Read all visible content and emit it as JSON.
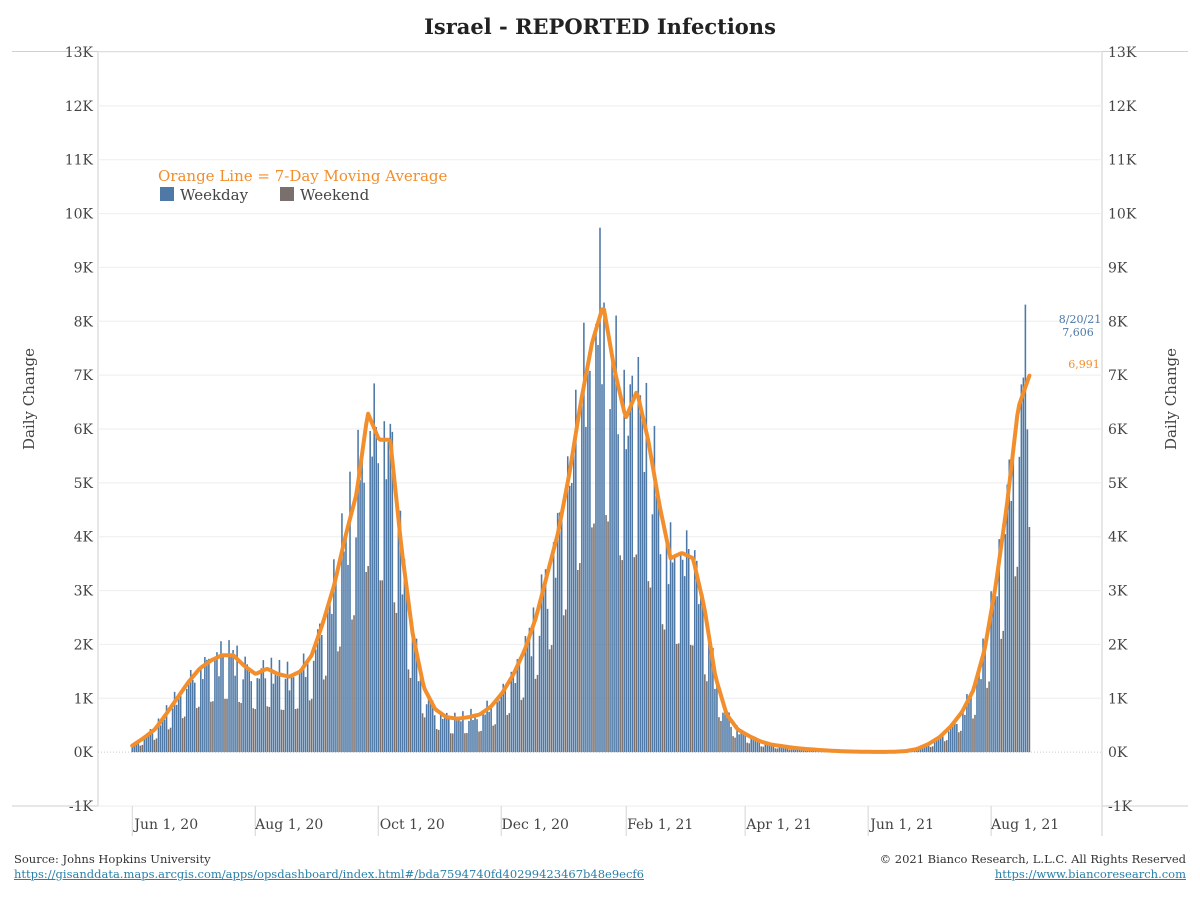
{
  "title": "Israel - REPORTED Infections",
  "source": "Source: Johns Hopkins University",
  "source_url": "https://gisanddata.maps.arcgis.com/apps/opsdashboard/index.html#/bda7594740fd40299423467b48e9ecf6",
  "copyright": "© 2021 Bianco Research, L.L.C. All Rights Reserved",
  "site_url": "https://www.biancoresearch.com",
  "colors": {
    "weekday": "#4e79a7",
    "weekend": "#79706e",
    "ma": "#f28e2b",
    "callout_bar": "#4e79a7",
    "callout_ma": "#f28e2b"
  },
  "chart_data": {
    "type": "bar",
    "title": "Israel - REPORTED Infections",
    "ylabel": "Daily Change",
    "ylabel_right": "Daily Change",
    "ylim": [
      -1000,
      13000
    ],
    "y_ticks": [
      -1000,
      0,
      1000,
      2000,
      3000,
      4000,
      5000,
      6000,
      7000,
      8000,
      9000,
      10000,
      11000,
      12000,
      13000
    ],
    "y_tick_labels": [
      "-1K",
      "0K",
      "1K",
      "2K",
      "3K",
      "4K",
      "5K",
      "6K",
      "7K",
      "8K",
      "9K",
      "10K",
      "11K",
      "12K",
      "13K"
    ],
    "xlim": [
      "2020-05-15",
      "2021-09-25"
    ],
    "x_ticks": [
      "2020-06-01",
      "2020-08-01",
      "2020-10-01",
      "2020-12-01",
      "2021-02-01",
      "2021-04-01",
      "2021-06-01",
      "2021-08-01"
    ],
    "x_tick_labels": [
      "Jun 1, 20",
      "Aug 1, 20",
      "Oct 1, 20",
      "Dec 1, 20",
      "Feb 1, 21",
      "Apr 1, 21",
      "Jun 1, 21",
      "Aug 1, 21"
    ],
    "grid": true,
    "legend": {
      "placement": "top-left",
      "note": "Orange Line = 7-Day Moving Average",
      "entries": [
        "Weekday",
        "Weekend"
      ]
    },
    "series": [
      {
        "name": "Daily Change (bars)",
        "type": "bar",
        "start_date": "2020-06-01",
        "end_date": "2021-08-20",
        "approximate_weekly_levels": [
          120,
          260,
          420,
          700,
          1000,
          1300,
          1550,
          1700,
          1800,
          1800,
          1600,
          1450,
          1550,
          1450,
          1400,
          1500,
          1800,
          2400,
          3100,
          4000,
          4800,
          6300,
          5800,
          5800,
          3800,
          2200,
          1200,
          800,
          650,
          620,
          650,
          700,
          850,
          1100,
          1450,
          1900,
          2500,
          3300,
          4100,
          5200,
          6500,
          7600,
          8300,
          7100,
          6200,
          6700,
          5800,
          4600,
          3600,
          3700,
          3600,
          2700,
          1400,
          700,
          420,
          300,
          200,
          140,
          110,
          80,
          60,
          45,
          30,
          20,
          12,
          8,
          6,
          5,
          8,
          20,
          60,
          150,
          280,
          480,
          750,
          1150,
          1900,
          3100,
          4600,
          6400,
          7600
        ]
      },
      {
        "name": "7-Day Moving Average",
        "type": "line",
        "start_date": "2020-06-01",
        "end_date": "2021-08-20",
        "approximate_weekly_levels": [
          120,
          260,
          420,
          700,
          1000,
          1300,
          1550,
          1700,
          1800,
          1800,
          1600,
          1450,
          1550,
          1450,
          1400,
          1500,
          1800,
          2400,
          3100,
          4000,
          4800,
          6300,
          5800,
          5800,
          3800,
          2200,
          1200,
          800,
          650,
          620,
          650,
          700,
          850,
          1100,
          1450,
          1900,
          2500,
          3300,
          4100,
          5200,
          6500,
          7600,
          8300,
          7100,
          6200,
          6700,
          5800,
          4600,
          3600,
          3700,
          3600,
          2700,
          1400,
          700,
          420,
          300,
          200,
          140,
          110,
          80,
          60,
          45,
          30,
          20,
          12,
          8,
          6,
          5,
          8,
          20,
          60,
          150,
          280,
          480,
          750,
          1150,
          1900,
          3100,
          4600,
          6400,
          6991
        ]
      }
    ],
    "annotations": [
      {
        "text": "8/20/21",
        "value_text": "7,606",
        "series": "bars",
        "x": "2021-08-20",
        "y": 7606
      },
      {
        "text": "6,991",
        "series": "7-Day Moving Average",
        "x": "2021-08-20",
        "y": 6991
      }
    ]
  }
}
